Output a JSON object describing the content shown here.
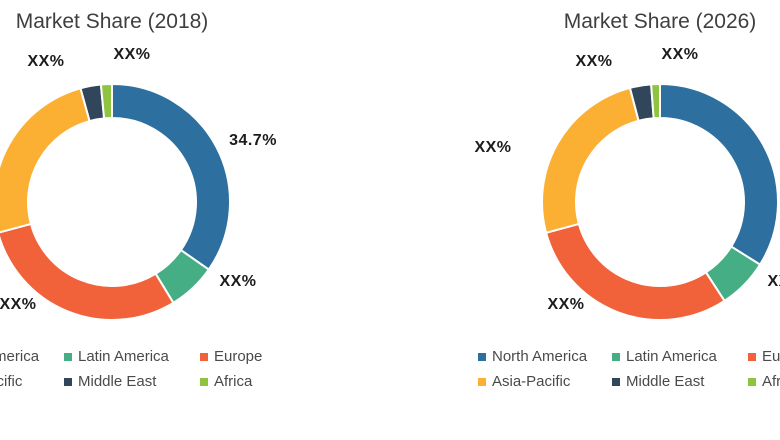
{
  "figure": {
    "background": "#ffffff"
  },
  "chart_data": [
    {
      "type": "donut",
      "title": "Market Share (2018)",
      "legend_position": "bottom",
      "hole_ratio": 0.71,
      "start_angle_deg": 0,
      "series": [
        {
          "name": "North America",
          "color": "#2D6F9E",
          "value_pct": 34.7,
          "label": "34.7%"
        },
        {
          "name": "Latin America",
          "color": "#45AE85",
          "value_pct": 6.6,
          "label": "XX%"
        },
        {
          "name": "Europe",
          "color": "#F1613A",
          "value_pct": 29.5,
          "label": "XX%"
        },
        {
          "name": "Asia-Pacific",
          "color": "#FBB033",
          "value_pct": 24.9,
          "label": "XX%"
        },
        {
          "name": "Middle East",
          "color": "#31455B",
          "value_pct": 2.8,
          "label": "XX%"
        },
        {
          "name": "Africa",
          "color": "#8EC440",
          "value_pct": 1.5,
          "label": "XX%"
        }
      ]
    },
    {
      "type": "donut",
      "title": "Market Share (2026)",
      "legend_position": "bottom",
      "hole_ratio": 0.71,
      "start_angle_deg": 0,
      "series": [
        {
          "name": "North America",
          "color": "#2D6F9E",
          "value_pct": 33.9,
          "label": "XX%"
        },
        {
          "name": "Latin America",
          "color": "#45AE85",
          "value_pct": 6.9,
          "label": "XX%"
        },
        {
          "name": "Europe",
          "color": "#F1613A",
          "value_pct": 30.0,
          "label": "XX%"
        },
        {
          "name": "Asia-Pacific",
          "color": "#FBB033",
          "value_pct": 25.1,
          "label": "XX%"
        },
        {
          "name": "Middle East",
          "color": "#31455B",
          "value_pct": 2.9,
          "label": "XX%"
        },
        {
          "name": "Africa",
          "color": "#8EC440",
          "value_pct": 1.2,
          "label": "XX%"
        }
      ]
    }
  ]
}
